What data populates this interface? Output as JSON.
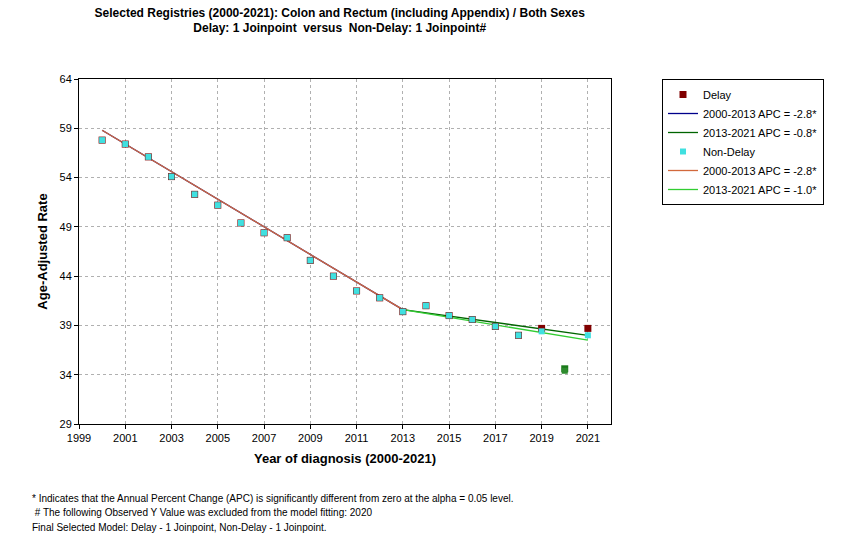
{
  "chart_data": {
    "type": "line",
    "title": "Selected Registries (2000-2021): Colon and Rectum (including Appendix) / Both Sexes",
    "subtitle": "Delay: 1 Joinpoint  versus  Non-Delay: 1 Joinpoint#",
    "x_label": "Year of diagnosis (2000-2021)",
    "y_label": "Age-Adjusted Rate",
    "xlim": [
      1999,
      2022
    ],
    "xticks": [
      1999,
      2001,
      2003,
      2005,
      2007,
      2009,
      2011,
      2013,
      2015,
      2017,
      2019,
      2021
    ],
    "ylim": [
      29,
      64
    ],
    "yticks": [
      29,
      34,
      39,
      44,
      49,
      54,
      59,
      64
    ],
    "grid": true,
    "legend": "right",
    "series": [
      {
        "name": "Delay",
        "type": "scatter",
        "marker": "square",
        "color": "#800000",
        "x": [
          2000,
          2001,
          2002,
          2003,
          2004,
          2005,
          2006,
          2007,
          2008,
          2009,
          2010,
          2011,
          2012,
          2013,
          2014,
          2015,
          2016,
          2017,
          2018,
          2019,
          2020,
          2021
        ],
        "values": [
          57.8,
          57.4,
          56.1,
          54.1,
          52.3,
          51.2,
          49.4,
          48.4,
          47.9,
          45.6,
          44.0,
          42.5,
          41.8,
          40.4,
          41.0,
          40.0,
          39.6,
          38.9,
          38.0,
          38.7,
          34.6,
          38.7
        ],
        "colors": [
          "#800000",
          "#800000",
          "#800000",
          "#800000",
          "#800000",
          "#800000",
          "#800000",
          "#800000",
          "#800000",
          "#800000",
          "#800000",
          "#800000",
          "#800000",
          "#800000",
          "#800000",
          "#800000",
          "#800000",
          "#800000",
          "#800000",
          "#800000",
          "#1a7a1a",
          "#800000"
        ]
      },
      {
        "name": "2000-2013 APC = -2.8*",
        "type": "line",
        "line_style": "solid",
        "color": "#00008b",
        "x": [
          2000,
          2013
        ],
        "values": [
          58.8,
          40.6
        ]
      },
      {
        "name": "2013-2021 APC = -0.8*",
        "type": "line",
        "line_style": "solid",
        "color": "#006400",
        "x": [
          2013,
          2021
        ],
        "values": [
          40.6,
          38.0
        ]
      },
      {
        "name": "Non-Delay",
        "type": "scatter",
        "marker": "square",
        "color": "#40e0e0",
        "x": [
          2000,
          2001,
          2002,
          2003,
          2004,
          2005,
          2006,
          2007,
          2008,
          2009,
          2010,
          2011,
          2012,
          2013,
          2014,
          2015,
          2016,
          2017,
          2018,
          2019,
          2020,
          2021
        ],
        "values": [
          57.8,
          57.4,
          56.1,
          54.1,
          52.3,
          51.2,
          49.4,
          48.4,
          47.9,
          45.6,
          44.0,
          42.5,
          41.8,
          40.4,
          41.0,
          40.0,
          39.6,
          38.9,
          38.0,
          38.4,
          34.4,
          38.0
        ],
        "colors": [
          "#40e0e0",
          "#40e0e0",
          "#40e0e0",
          "#40e0e0",
          "#40e0e0",
          "#40e0e0",
          "#40e0e0",
          "#40e0e0",
          "#40e0e0",
          "#40e0e0",
          "#40e0e0",
          "#40e0e0",
          "#40e0e0",
          "#40e0e0",
          "#40e0e0",
          "#40e0e0",
          "#40e0e0",
          "#40e0e0",
          "#40e0e0",
          "#40e0e0",
          "#2e8b2e",
          "#40e0e0"
        ]
      },
      {
        "name": "2000-2013 APC = -2.8*",
        "type": "line",
        "line_style": "solid",
        "color": "#d2693c",
        "x": [
          2000,
          2013
        ],
        "values": [
          58.8,
          40.6
        ]
      },
      {
        "name": "2013-2021 APC = -1.0*",
        "type": "line",
        "line_style": "solid",
        "color": "#32cd32",
        "x": [
          2013,
          2021
        ],
        "values": [
          40.6,
          37.5
        ]
      }
    ],
    "notes": [
      "* Indicates that the Annual Percent Change (APC) is significantly different from zero at the alpha = 0.05 level.",
      " # The following Observed Y Value was excluded from the model fitting: 2020",
      "Final Selected Model: Delay - 1 Joinpoint, Non-Delay - 1 Joinpoint."
    ]
  }
}
